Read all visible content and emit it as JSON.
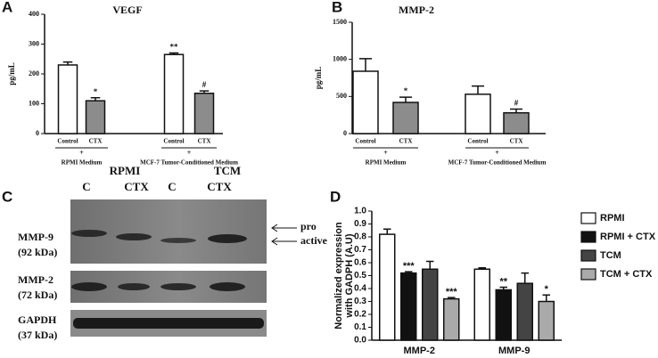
{
  "chart_data": [
    {
      "type": "bar",
      "panel": "A",
      "title": "VEGF",
      "ylabel": "pg/mL",
      "categories": [
        "Control",
        "CTX",
        "Control",
        "CTX"
      ],
      "values": [
        230,
        110,
        265,
        135
      ],
      "errors": [
        10,
        10,
        5,
        8
      ],
      "annotations": [
        null,
        "*",
        "**",
        "#"
      ],
      "colors": [
        "#ffffff",
        "#8c8c8c",
        "#ffffff",
        "#8c8c8c"
      ],
      "groups": [
        {
          "sign": "+",
          "label": "RPMI Medium"
        },
        {
          "sign": "+",
          "label": "MCF-7 Tumor-Conditioned Medium"
        }
      ],
      "ylim": [
        0,
        400
      ],
      "yticks": [
        0,
        100,
        200,
        300,
        400
      ]
    },
    {
      "type": "bar",
      "panel": "B",
      "title": "MMP-2",
      "ylabel": "pg/mL",
      "categories": [
        "Control",
        "CTX",
        "Control",
        "CTX"
      ],
      "values": [
        840,
        420,
        530,
        280
      ],
      "errors": [
        170,
        70,
        110,
        50
      ],
      "annotations": [
        null,
        "*",
        null,
        "#"
      ],
      "colors": [
        "#ffffff",
        "#8c8c8c",
        "#ffffff",
        "#8c8c8c"
      ],
      "groups": [
        {
          "sign": "+",
          "label": "RPMI Medium"
        },
        {
          "sign": "+",
          "label": "MCF-7 Tumor-Conditioned Medium"
        }
      ],
      "ylim": [
        0,
        1500
      ],
      "yticks": [
        0,
        500,
        1000,
        1500
      ]
    },
    {
      "type": "grouped_bar",
      "panel": "D",
      "ylabel": [
        "Normalized expression",
        "with GADPH (A.U)"
      ],
      "categories": [
        "MMP-2",
        "MMP-9"
      ],
      "series": [
        {
          "name": "RPMI",
          "color": "#ffffff",
          "values": [
            0.82,
            0.55
          ],
          "errors": [
            0.04,
            0.01
          ],
          "annotations": [
            null,
            null
          ]
        },
        {
          "name": "RPMI + CTX",
          "color": "#111111",
          "values": [
            0.52,
            0.39
          ],
          "errors": [
            0.01,
            0.02
          ],
          "annotations": [
            "***",
            "**"
          ]
        },
        {
          "name": "TCM",
          "color": "#444444",
          "values": [
            0.55,
            0.44
          ],
          "errors": [
            0.06,
            0.08
          ],
          "annotations": [
            null,
            null
          ]
        },
        {
          "name": "TCM + CTX",
          "color": "#aaaaaa",
          "values": [
            0.32,
            0.3
          ],
          "errors": [
            0.01,
            0.05
          ],
          "annotations": [
            "***",
            "*"
          ]
        }
      ],
      "ylim": [
        0,
        1
      ],
      "yticks": [
        {
          "value": 0,
          "label": "0.0"
        },
        0.1,
        0.2,
        0.3,
        0.4,
        0.5,
        0.6,
        0.7,
        0.8,
        0.9,
        {
          "value": 1,
          "label": "1.0"
        }
      ],
      "legend": "right"
    }
  ],
  "blot": {
    "panel": "C",
    "groups": [
      "RPMI",
      "TCM"
    ],
    "lanes": [
      "C",
      "CTX",
      "C",
      "CTX"
    ],
    "rows": [
      {
        "protein": "MMP-9",
        "size": "(92 kDa)"
      },
      {
        "protein": "MMP-2",
        "size": "(72 kDa)"
      },
      {
        "protein": "GAPDH",
        "size": "(37 kDa)"
      }
    ],
    "arrows": [
      "pro",
      "active"
    ]
  }
}
